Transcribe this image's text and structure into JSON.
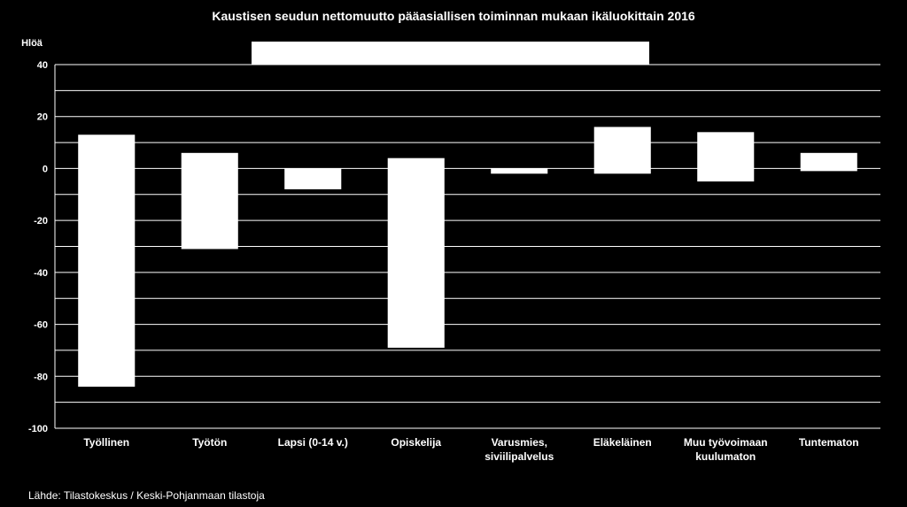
{
  "chart_data": {
    "type": "bar",
    "subtype": "floating-range",
    "title": "Kaustisen seudun nettomuutto pääasiallisen toiminnan mukaan ikäluokittain 2016",
    "ylabel": "Hlöä",
    "xlabel": "",
    "ylim": [
      -100,
      40
    ],
    "yticks": [
      40,
      20,
      0,
      -20,
      -40,
      -60,
      -80,
      -100
    ],
    "grid": true,
    "legend": "top",
    "colors": {
      "background": "#000000",
      "bars": "#ffffff",
      "text": "#ffffff",
      "grid": "#ffffff"
    },
    "categories": [
      [
        "Työllinen"
      ],
      [
        "Työtön"
      ],
      [
        "Lapsi (0-14 v.)"
      ],
      [
        "Opiskelija"
      ],
      [
        "Varusmies,",
        "siviilipalvelus"
      ],
      [
        "Eläkeläinen"
      ],
      [
        "Muu työvoimaan",
        "kuulumaton"
      ],
      [
        "Tuntematon"
      ]
    ],
    "bars": [
      {
        "low": -84,
        "high": 13
      },
      {
        "low": -31,
        "high": 6
      },
      {
        "low": -8,
        "high": 0
      },
      {
        "low": -69,
        "high": 4
      },
      {
        "low": -2,
        "high": 0
      },
      {
        "low": -2,
        "high": 16
      },
      {
        "low": -5,
        "high": 14
      },
      {
        "low": -1,
        "high": 6
      }
    ],
    "source": "Lähde: Tilastokeskus / Keski-Pohjanmaan tilastoja"
  }
}
